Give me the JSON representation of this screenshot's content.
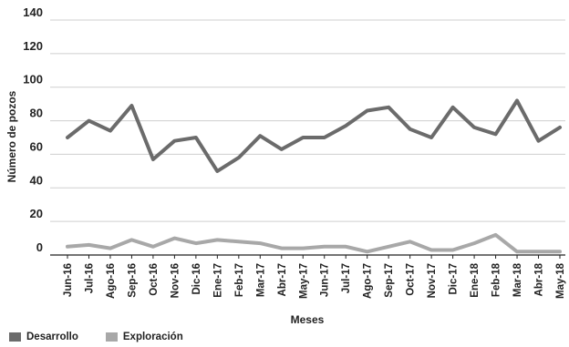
{
  "chart_data": {
    "type": "line",
    "title": "",
    "xlabel": "Meses",
    "ylabel": "Número de pozos",
    "ylim": [
      0,
      140
    ],
    "yticks": [
      0,
      20,
      40,
      60,
      80,
      100,
      120,
      140
    ],
    "grid": "horizontal",
    "legend_position": "bottom-left",
    "categories": [
      "Jun-16",
      "Jul-16",
      "Ago-16",
      "Sep-16",
      "Oct-16",
      "Nov-16",
      "Dic-16",
      "Ene-17",
      "Feb-17",
      "Mar-17",
      "Abr-17",
      "May-17",
      "Jun-17",
      "Jul-17",
      "Ago-17",
      "Sep-17",
      "Oct-17",
      "Nov-17",
      "Dic-17",
      "Ene-18",
      "Feb-18",
      "Mar-18",
      "Abr-18",
      "May-18"
    ],
    "series": [
      {
        "name": "Desarrollo",
        "color": "#6b6b6b",
        "values": [
          70,
          80,
          74,
          89,
          57,
          68,
          70,
          50,
          58,
          71,
          63,
          70,
          70,
          77,
          86,
          88,
          75,
          70,
          88,
          76,
          72,
          92,
          68,
          76
        ]
      },
      {
        "name": "Exploración",
        "color": "#a8a8a8",
        "values": [
          5,
          6,
          4,
          9,
          5,
          10,
          7,
          9,
          8,
          7,
          4,
          4,
          5,
          5,
          2,
          5,
          8,
          3,
          3,
          7,
          12,
          2,
          2,
          2
        ]
      }
    ]
  }
}
